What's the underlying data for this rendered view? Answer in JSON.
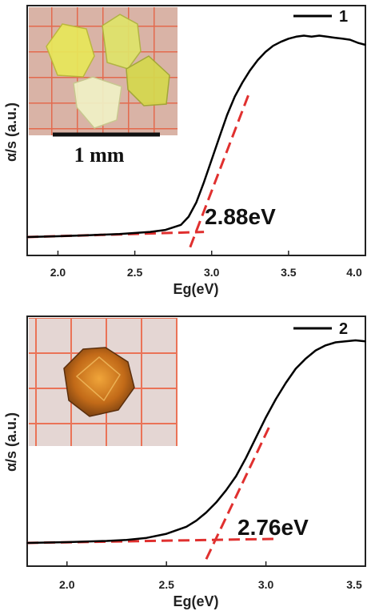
{
  "chart_data": [
    {
      "type": "line",
      "xlabel": "Eg(eV)",
      "ylabel": "α/s (a.u.)",
      "xlim": [
        1.8,
        4.0
      ],
      "ylim": [
        0,
        1
      ],
      "x_ticks": [
        "2.0",
        "2.5",
        "3.0",
        "3.5",
        "4.0"
      ],
      "grid": false,
      "legend": {
        "label": "1",
        "placement": "top-right"
      },
      "annotation": "2.88eV",
      "inset": {
        "kind": "photo",
        "description": "yellow crystals",
        "scale_bar_label": "1 mm"
      },
      "series": [
        {
          "name": "1",
          "color": "#000000",
          "x": [
            1.8,
            2.0,
            2.2,
            2.4,
            2.6,
            2.7,
            2.8,
            2.85,
            2.9,
            2.95,
            3.0,
            3.05,
            3.1,
            3.15,
            3.2,
            3.25,
            3.3,
            3.35,
            3.4,
            3.45,
            3.5,
            3.55,
            3.6,
            3.65,
            3.7,
            3.75,
            3.8,
            3.85,
            3.9,
            3.95,
            4.0
          ],
          "y": [
            0.0,
            0.004,
            0.009,
            0.015,
            0.025,
            0.035,
            0.06,
            0.1,
            0.17,
            0.27,
            0.38,
            0.49,
            0.6,
            0.69,
            0.76,
            0.82,
            0.87,
            0.91,
            0.94,
            0.96,
            0.975,
            0.985,
            0.99,
            0.985,
            0.99,
            0.985,
            0.98,
            0.975,
            0.97,
            0.955,
            0.945
          ]
        }
      ],
      "fit_lines": [
        {
          "color": "#e0302f",
          "style": "dashed",
          "x": [
            1.8,
            2.95
          ],
          "y": [
            0.0,
            0.025
          ]
        },
        {
          "color": "#e0302f",
          "style": "dashed",
          "x": [
            2.86,
            3.24
          ],
          "y": [
            -0.05,
            0.7
          ]
        }
      ]
    },
    {
      "type": "line",
      "xlabel": "Eg(eV)",
      "ylabel": "α/s (a.u.)",
      "xlim": [
        1.8,
        3.5
      ],
      "ylim": [
        0,
        1
      ],
      "x_ticks": [
        "2.0",
        "2.5",
        "3.0",
        "3.5"
      ],
      "grid": false,
      "legend": {
        "label": "2",
        "placement": "top-right"
      },
      "annotation": "2.76eV",
      "inset": {
        "kind": "photo",
        "description": "orange crystal"
      },
      "series": [
        {
          "name": "2",
          "color": "#000000",
          "x": [
            1.8,
            1.9,
            2.0,
            2.1,
            2.2,
            2.3,
            2.4,
            2.5,
            2.6,
            2.65,
            2.7,
            2.75,
            2.8,
            2.85,
            2.9,
            2.95,
            3.0,
            3.05,
            3.1,
            3.15,
            3.2,
            3.25,
            3.3,
            3.35,
            3.4,
            3.45,
            3.5
          ],
          "y": [
            0.0,
            0.002,
            0.004,
            0.007,
            0.01,
            0.015,
            0.025,
            0.045,
            0.08,
            0.11,
            0.15,
            0.2,
            0.26,
            0.33,
            0.42,
            0.52,
            0.62,
            0.71,
            0.79,
            0.86,
            0.91,
            0.95,
            0.975,
            0.99,
            0.995,
            1.0,
            0.995
          ]
        }
      ],
      "fit_lines": [
        {
          "color": "#e0302f",
          "style": "dashed",
          "x": [
            1.8,
            3.05
          ],
          "y": [
            0.0,
            0.02
          ]
        },
        {
          "color": "#e0302f",
          "style": "dashed",
          "x": [
            2.7,
            3.02
          ],
          "y": [
            -0.08,
            0.58
          ]
        }
      ]
    }
  ]
}
